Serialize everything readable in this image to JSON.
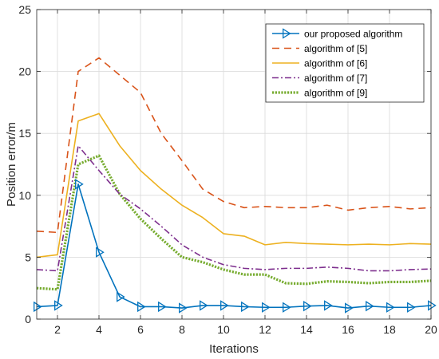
{
  "chart_data": {
    "type": "line",
    "title": "",
    "xlabel": "Iterations",
    "ylabel": "Position error/m",
    "xlim": [
      1,
      20
    ],
    "ylim": [
      0,
      25
    ],
    "xticks": [
      2,
      4,
      6,
      8,
      10,
      12,
      14,
      16,
      18,
      20
    ],
    "yticks": [
      0,
      5,
      10,
      15,
      20,
      25
    ],
    "grid": true,
    "legend_position": "top-right",
    "x": [
      1,
      2,
      3,
      4,
      5,
      6,
      7,
      8,
      9,
      10,
      11,
      12,
      13,
      14,
      15,
      16,
      17,
      18,
      19,
      20
    ],
    "series": [
      {
        "name": "our proposed algorithm",
        "color": "#0072BD",
        "style": "solid-triangle-right-markers",
        "values": [
          1.0,
          1.1,
          10.9,
          5.4,
          1.8,
          1.0,
          1.0,
          0.9,
          1.1,
          1.1,
          1.0,
          0.95,
          0.95,
          1.05,
          1.1,
          0.9,
          1.05,
          0.95,
          0.95,
          1.1
        ]
      },
      {
        "name": "algorithm of [5]",
        "color": "#D95319",
        "style": "dashed",
        "values": [
          7.1,
          7.0,
          20.0,
          21.1,
          19.7,
          18.3,
          15.0,
          12.8,
          10.5,
          9.5,
          9.0,
          9.1,
          9.0,
          9.0,
          9.2,
          8.8,
          9.0,
          9.1,
          8.9,
          9.0
        ]
      },
      {
        "name": "algorithm of [6]",
        "color": "#EDB120",
        "style": "solid",
        "values": [
          5.0,
          5.2,
          16.0,
          16.6,
          14.0,
          12.0,
          10.5,
          9.2,
          8.2,
          6.9,
          6.7,
          6.0,
          6.2,
          6.1,
          6.05,
          6.0,
          6.05,
          6.0,
          6.1,
          6.05
        ]
      },
      {
        "name": "algorithm of [7]",
        "color": "#7E2F8E",
        "style": "dash-dot",
        "values": [
          4.0,
          3.9,
          14.0,
          12.0,
          10.1,
          8.9,
          7.5,
          6.0,
          5.0,
          4.4,
          4.1,
          4.0,
          4.1,
          4.1,
          4.2,
          4.1,
          3.9,
          3.9,
          4.0,
          4.05
        ]
      },
      {
        "name": "algorithm of [9]",
        "color": "#77AC30",
        "style": "dotted",
        "values": [
          2.5,
          2.4,
          12.5,
          13.2,
          10.1,
          8.1,
          6.5,
          5.0,
          4.6,
          4.0,
          3.6,
          3.6,
          2.9,
          2.85,
          3.05,
          3.0,
          2.9,
          3.0,
          3.0,
          3.1
        ]
      }
    ]
  }
}
